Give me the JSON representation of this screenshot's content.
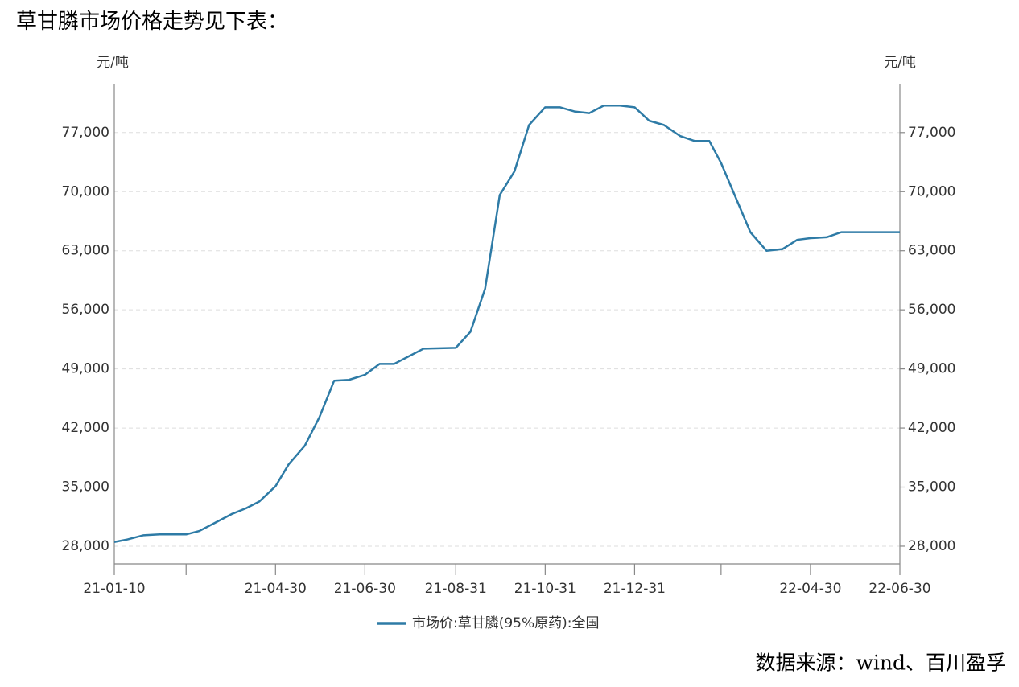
{
  "chart_data": {
    "type": "line",
    "title": "草甘膦市场价格走势见下表：",
    "source": "数据来源：wind、百川盈孚",
    "y_label": "元/吨",
    "y2_label": "元/吨",
    "x": [
      "21-01-10",
      "21-01-19",
      "21-01-30",
      "21-02-10",
      "21-02-28",
      "21-03-09",
      "21-03-20",
      "21-03-31",
      "21-04-10",
      "21-04-19",
      "21-04-30",
      "21-05-09",
      "21-05-20",
      "21-05-30",
      "21-06-09",
      "21-06-19",
      "21-06-30",
      "21-07-10",
      "21-07-20",
      "21-07-30",
      "21-08-09",
      "21-08-31",
      "21-09-10",
      "21-09-20",
      "21-09-30",
      "21-10-10",
      "21-10-20",
      "21-10-31",
      "21-11-10",
      "21-11-20",
      "21-11-30",
      "21-12-10",
      "21-12-21",
      "21-12-31",
      "22-01-10",
      "22-01-20",
      "22-01-31",
      "22-02-10",
      "22-02-20",
      "22-02-28",
      "22-03-20",
      "22-03-31",
      "22-04-11",
      "22-04-21",
      "22-04-30",
      "22-05-11",
      "22-05-21",
      "22-06-10",
      "22-06-30"
    ],
    "series": [
      {
        "name": "市场价:草甘膦(95%原药):全国",
        "color": "#2e7ba6",
        "values": [
          28500,
          28800,
          29300,
          29400,
          29400,
          29800,
          30800,
          31800,
          32500,
          33300,
          35100,
          37700,
          39900,
          43300,
          47600,
          47700,
          48300,
          49600,
          49600,
          50500,
          51400,
          51500,
          53400,
          58500,
          69600,
          72400,
          77900,
          80000,
          80000,
          79500,
          79300,
          80200,
          80200,
          80000,
          78400,
          77900,
          76600,
          76000,
          76000,
          73400,
          65200,
          63000,
          63200,
          64300,
          64500,
          64600,
          65200,
          65200,
          65200
        ]
      }
    ],
    "xlim": [
      "21-01-10",
      "22-06-30"
    ],
    "xticks": [
      "21-01-10",
      {
        "value": "21-02-28",
        "label": null
      },
      "21-04-30",
      "21-06-30",
      "21-08-31",
      "21-10-31",
      "21-12-31",
      {
        "value": "22-02-28",
        "label": null
      },
      "22-04-30",
      "22-06-30"
    ],
    "ylim": [
      25900,
      82700
    ],
    "yticks": [
      {
        "value": 28000,
        "label": "28,000"
      },
      {
        "value": 35000,
        "label": "35,000"
      },
      {
        "value": 42000,
        "label": "42,000"
      },
      {
        "value": 49000,
        "label": "49,000"
      },
      {
        "value": 56000,
        "label": "56,000"
      },
      {
        "value": 63000,
        "label": "63,000"
      },
      {
        "value": 70000,
        "label": "70,000"
      },
      {
        "value": 77000,
        "label": "77,000"
      }
    ],
    "y2lim": [
      25900,
      82700
    ],
    "y2ticks": [
      {
        "value": 28000,
        "label": "28,000"
      },
      {
        "value": 35000,
        "label": "35,000"
      },
      {
        "value": 42000,
        "label": "42,000"
      },
      {
        "value": 49000,
        "label": "49,000"
      },
      {
        "value": 56000,
        "label": "56,000"
      },
      {
        "value": 63000,
        "label": "63,000"
      },
      {
        "value": 70000,
        "label": "70,000"
      },
      {
        "value": 77000,
        "label": "77,000"
      }
    ],
    "grid": true,
    "legend": "bottom"
  }
}
